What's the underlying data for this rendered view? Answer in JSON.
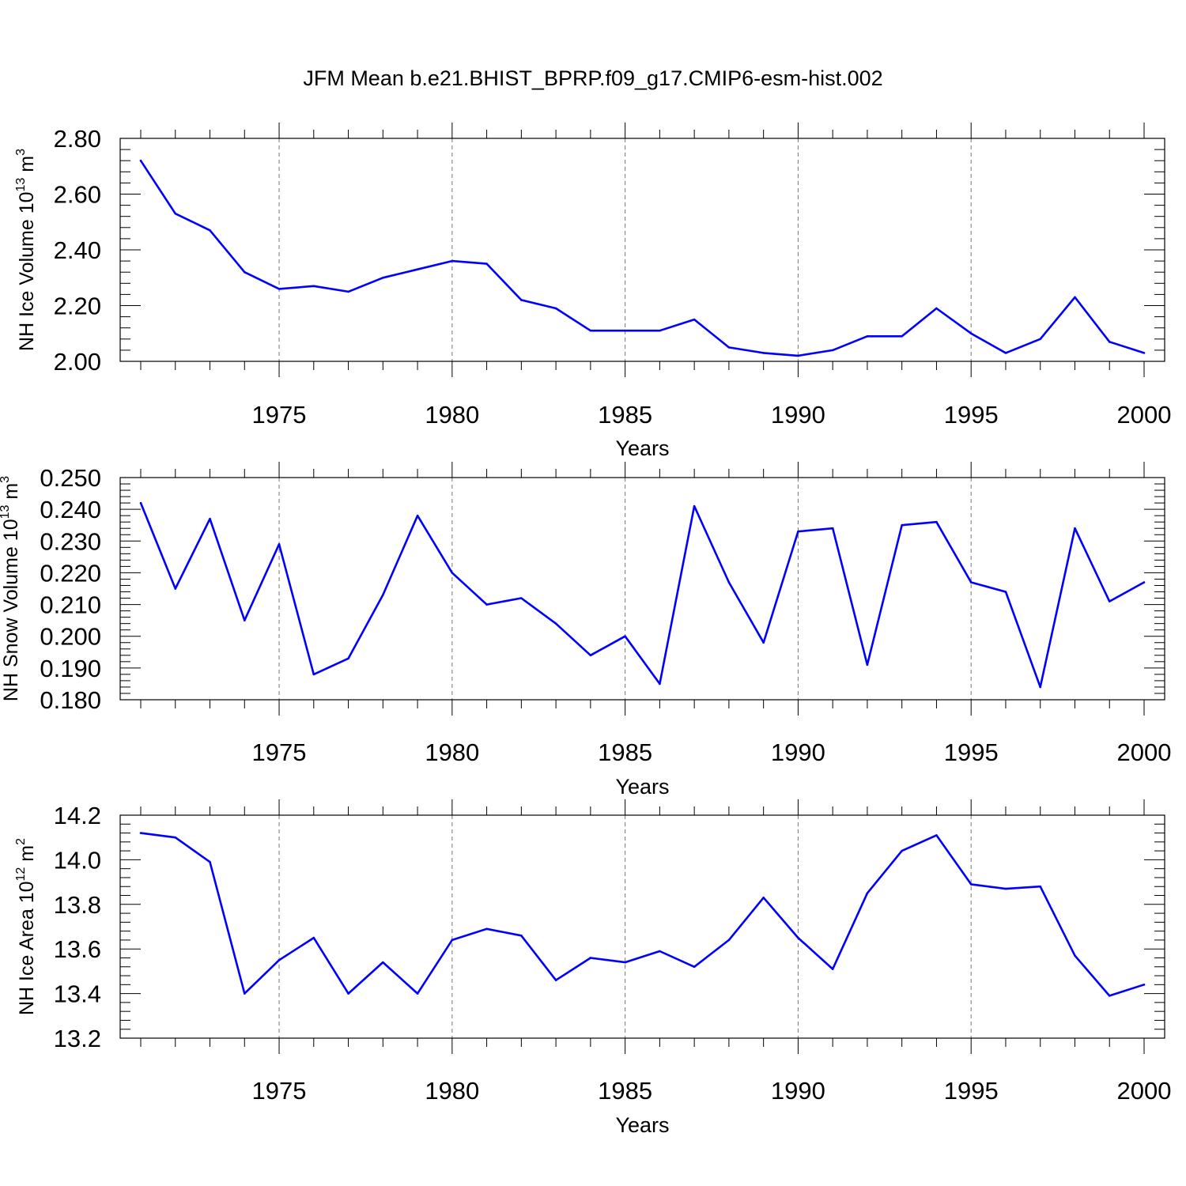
{
  "title": "JFM Mean b.e21.BHIST_BPRP.f09_g17.CMIP6-esm-hist.002",
  "chart_data": [
    {
      "type": "line",
      "xlabel": "Years",
      "ylabel": {
        "text": "NH Ice Volume 10",
        "exp1": "13",
        "mid": " m",
        "exp2": "3"
      },
      "xlim": [
        1971,
        2000
      ],
      "ylim": [
        2.0,
        2.8
      ],
      "x_ticks": [
        "1975",
        "1980",
        "1985",
        "1990",
        "1995",
        "2000"
      ],
      "y_ticks": [
        "2.00",
        "2.20",
        "2.40",
        "2.60",
        "2.80"
      ],
      "grid": "vertical dashed at major x ticks",
      "color": "#0000ff",
      "x": [
        1971,
        1972,
        1973,
        1974,
        1975,
        1976,
        1977,
        1978,
        1979,
        1980,
        1981,
        1982,
        1983,
        1984,
        1985,
        1986,
        1987,
        1988,
        1989,
        1990,
        1991,
        1992,
        1993,
        1994,
        1995,
        1996,
        1997,
        1998,
        1999,
        2000
      ],
      "values": [
        2.72,
        2.53,
        2.47,
        2.32,
        2.26,
        2.27,
        2.25,
        2.3,
        2.33,
        2.36,
        2.35,
        2.22,
        2.19,
        2.11,
        2.11,
        2.11,
        2.15,
        2.05,
        2.03,
        2.02,
        2.04,
        2.09,
        2.09,
        2.19,
        2.1,
        2.03,
        2.08,
        2.23,
        2.07,
        2.03
      ]
    },
    {
      "type": "line",
      "xlabel": "Years",
      "ylabel": {
        "text": "NH Snow Volume 10",
        "exp1": "13",
        "mid": " m",
        "exp2": "3"
      },
      "xlim": [
        1971,
        2000
      ],
      "ylim": [
        0.18,
        0.25
      ],
      "x_ticks": [
        "1975",
        "1980",
        "1985",
        "1990",
        "1995",
        "2000"
      ],
      "y_ticks": [
        "0.180",
        "0.190",
        "0.200",
        "0.210",
        "0.220",
        "0.230",
        "0.240",
        "0.250"
      ],
      "grid": "vertical dashed at major x ticks",
      "color": "#0000ff",
      "x": [
        1971,
        1972,
        1973,
        1974,
        1975,
        1976,
        1977,
        1978,
        1979,
        1980,
        1981,
        1982,
        1983,
        1984,
        1985,
        1986,
        1987,
        1988,
        1989,
        1990,
        1991,
        1992,
        1993,
        1994,
        1995,
        1996,
        1997,
        1998,
        1999,
        2000
      ],
      "values": [
        0.242,
        0.215,
        0.237,
        0.205,
        0.229,
        0.188,
        0.193,
        0.213,
        0.238,
        0.22,
        0.21,
        0.212,
        0.204,
        0.194,
        0.2,
        0.185,
        0.241,
        0.217,
        0.198,
        0.233,
        0.234,
        0.191,
        0.235,
        0.236,
        0.217,
        0.214,
        0.184,
        0.234,
        0.211,
        0.217
      ]
    },
    {
      "type": "line",
      "xlabel": "Years",
      "ylabel": {
        "text": "NH Ice Area 10",
        "exp1": "12",
        "mid": " m",
        "exp2": "2"
      },
      "xlim": [
        1971,
        2000
      ],
      "ylim": [
        13.2,
        14.2
      ],
      "x_ticks": [
        "1975",
        "1980",
        "1985",
        "1990",
        "1995",
        "2000"
      ],
      "y_ticks": [
        "13.2",
        "13.4",
        "13.6",
        "13.8",
        "14.0",
        "14.2"
      ],
      "grid": "vertical dashed at major x ticks",
      "color": "#0000ff",
      "x": [
        1971,
        1972,
        1973,
        1974,
        1975,
        1976,
        1977,
        1978,
        1979,
        1980,
        1981,
        1982,
        1983,
        1984,
        1985,
        1986,
        1987,
        1988,
        1989,
        1990,
        1991,
        1992,
        1993,
        1994,
        1995,
        1996,
        1997,
        1998,
        1999,
        2000
      ],
      "values": [
        14.12,
        14.1,
        13.99,
        13.4,
        13.55,
        13.65,
        13.4,
        13.54,
        13.4,
        13.64,
        13.69,
        13.66,
        13.46,
        13.56,
        13.54,
        13.59,
        13.52,
        13.64,
        13.83,
        13.65,
        13.51,
        13.85,
        14.04,
        14.11,
        13.89,
        13.87,
        13.88,
        13.57,
        13.39,
        13.44
      ]
    }
  ]
}
